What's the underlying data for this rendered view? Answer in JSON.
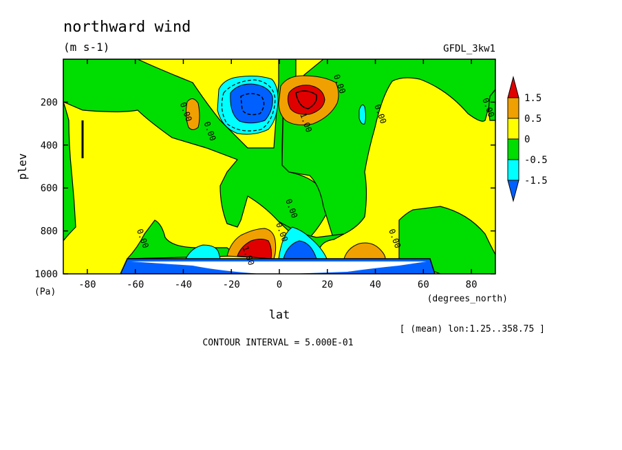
{
  "chart_data": {
    "type": "contour",
    "title": "northward wind",
    "units": "(m s-1)",
    "dataset": "GFDL_3kw1",
    "xlabel": "lat",
    "xunits": "(degrees_north)",
    "ylabel": "plev",
    "yunits": "(Pa)",
    "xlim": [
      -90,
      90
    ],
    "ylim": [
      1000,
      0
    ],
    "x_ticks": [
      -80,
      -60,
      -40,
      -20,
      0,
      20,
      40,
      60,
      80
    ],
    "y_ticks": [
      200,
      400,
      600,
      800,
      1000
    ],
    "averaging_note": "[ (mean) lon:1.25..358.75 ]",
    "contour_interval_text": "CONTOUR INTERVAL = 5.000E-01",
    "colorbar": {
      "labels": [
        "1.5",
        "0.5",
        "0",
        "-0.5",
        "-1.5"
      ],
      "colors": [
        "#e00000",
        "#f0a000",
        "#ffff00",
        "#00dd00",
        "#00ffff",
        "#0060ff"
      ]
    },
    "contour_labels": [
      {
        "text": "0.00",
        "lat": -40,
        "plev": 250
      },
      {
        "text": "0.00",
        "lat": -30,
        "plev": 340
      },
      {
        "text": "1.00",
        "lat": 10,
        "plev": 300
      },
      {
        "text": "0.00",
        "lat": 24,
        "plev": 120
      },
      {
        "text": "0.00",
        "lat": 41,
        "plev": 260
      },
      {
        "text": "0.00",
        "lat": 86,
        "plev": 230
      },
      {
        "text": "0.00",
        "lat": 4,
        "plev": 700
      },
      {
        "text": "0.00",
        "lat": -58,
        "plev": 840
      },
      {
        "text": "0.00",
        "lat": 47,
        "plev": 840
      },
      {
        "text": "0.00",
        "lat": 0,
        "plev": 810
      },
      {
        "text": "1.00",
        "lat": -14,
        "plev": 920
      }
    ],
    "features": [
      {
        "name": "upper southward cell",
        "lat": -10,
        "plev": 200,
        "approx_min": -1.5
      },
      {
        "name": "upper northward cell",
        "lat": 8,
        "plev": 200,
        "approx_max": 1.5
      },
      {
        "name": "lower northward cell",
        "lat": -10,
        "plev": 900,
        "approx_max": 1.5
      },
      {
        "name": "lower southward cell",
        "lat": 8,
        "plev": 900,
        "approx_min": -1.5
      }
    ]
  }
}
